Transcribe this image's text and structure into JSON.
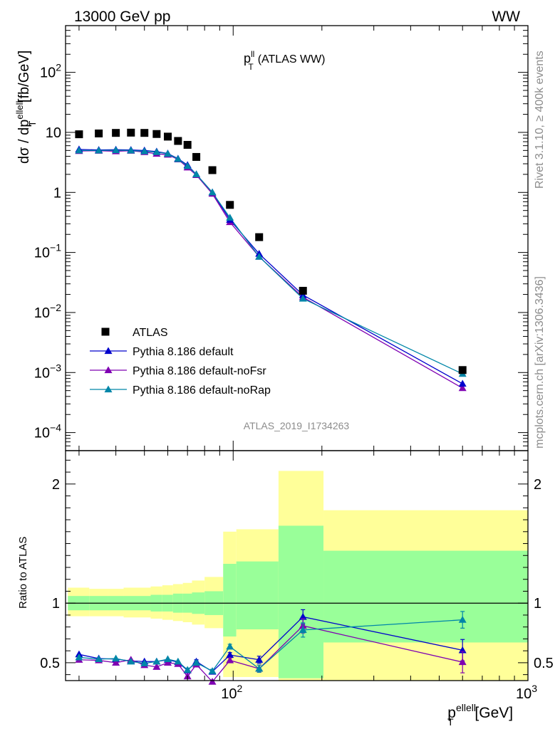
{
  "header": {
    "left": "13000 GeV pp",
    "right": "WW"
  },
  "side": {
    "rivet": "Rivet 3.1.10, ≥ 400k events",
    "mcplots": "mcplots.cern.ch [arXiv:1306.3436]"
  },
  "colors": {
    "atlas": "#000000",
    "default": "#0000cc",
    "noFsr": "#7f00b2",
    "noRap": "#0086a8",
    "band_outer": "#ffff99",
    "band_inner": "#99ff99"
  },
  "chart_data": [
    {
      "type": "scatter",
      "title_main": "p",
      "title_sup": "ll",
      "title_sub": "T",
      "title_rest": "(ATLAS WW)",
      "ylabel_pre": "dσ / dp",
      "ylabel_sup": "ellell",
      "ylabel_sub": "T",
      "ylabel_post": " [fb/GeV]",
      "yscale": "log",
      "ylim": [
        5e-05,
        600
      ],
      "xscale": "log",
      "xlim": [
        27,
        1000
      ],
      "y_ticks": [
        {
          "v": 0.0001,
          "base": "10",
          "exp": "−4"
        },
        {
          "v": 0.001,
          "base": "10",
          "exp": "−3"
        },
        {
          "v": 0.01,
          "base": "10",
          "exp": "−2"
        },
        {
          "v": 0.1,
          "base": "10",
          "exp": "−1"
        },
        {
          "v": 1,
          "base": "1",
          "exp": ""
        },
        {
          "v": 10,
          "base": "10",
          "exp": ""
        },
        {
          "v": 100,
          "base": "10",
          "exp": "2"
        }
      ],
      "watermark": "ATLAS_2019_I1734263",
      "legend": {
        "position": "bottom-left",
        "entries": [
          "ATLAS",
          "Pythia 8.186 default",
          "Pythia 8.186 default-noFsr",
          "Pythia 8.186 default-noRap"
        ]
      },
      "x": [
        30,
        35,
        40,
        45,
        50,
        55,
        60,
        65,
        70,
        75,
        85,
        97.5,
        122.5,
        172.5,
        600
      ],
      "series": [
        {
          "name": "ATLAS",
          "values": [
            9.3,
            9.6,
            9.8,
            9.9,
            9.8,
            9.4,
            8.5,
            7.2,
            6.2,
            3.9,
            2.35,
            0.62,
            0.18,
            0.023,
            0.0011
          ]
        },
        {
          "name": "Pythia 8.186 default",
          "values": [
            5.2,
            5.1,
            5.15,
            5.1,
            5.0,
            4.8,
            4.45,
            3.65,
            2.85,
            2.0,
            1.0,
            0.35,
            0.095,
            0.0195,
            0.00065
          ]
        },
        {
          "name": "Pythia 8.186 default-noFsr",
          "values": [
            4.9,
            4.95,
            4.85,
            4.95,
            4.7,
            4.4,
            4.25,
            3.55,
            2.6,
            1.95,
            0.95,
            0.32,
            0.085,
            0.018,
            0.00055
          ]
        },
        {
          "name": "Pythia 8.186 default-noRap",
          "values": [
            5.0,
            5.0,
            5.05,
            5.0,
            4.85,
            4.7,
            4.4,
            3.6,
            2.75,
            2.0,
            1.0,
            0.38,
            0.085,
            0.017,
            0.00095
          ]
        }
      ]
    },
    {
      "type": "scatter",
      "ylabel": "Ratio to ATLAS",
      "ylim": [
        0.35,
        2.28
      ],
      "xscale": "log",
      "xlim": [
        27,
        1000
      ],
      "xlabel_pre": "p",
      "xlabel_sup": "ellell",
      "xlabel_sub": "T",
      "xlabel_post": " [GeV]",
      "x_ticks": [
        {
          "v": 100,
          "base": "10",
          "exp": "2"
        },
        {
          "v": 1000,
          "base": "10",
          "exp": "3"
        }
      ],
      "y_ticks": [
        "0.5",
        "1",
        "2"
      ],
      "bins": [
        {
          "lo": 27.5,
          "hi": 32.5,
          "inner": [
            0.94,
            1.06
          ],
          "outer": [
            0.89,
            1.13
          ]
        },
        {
          "lo": 32.5,
          "hi": 37.5,
          "inner": [
            0.94,
            1.06
          ],
          "outer": [
            0.89,
            1.12
          ]
        },
        {
          "lo": 37.5,
          "hi": 42.5,
          "inner": [
            0.94,
            1.06
          ],
          "outer": [
            0.89,
            1.12
          ]
        },
        {
          "lo": 42.5,
          "hi": 47.5,
          "inner": [
            0.94,
            1.06
          ],
          "outer": [
            0.88,
            1.13
          ]
        },
        {
          "lo": 47.5,
          "hi": 52.5,
          "inner": [
            0.94,
            1.06
          ],
          "outer": [
            0.88,
            1.13
          ]
        },
        {
          "lo": 52.5,
          "hi": 57.5,
          "inner": [
            0.93,
            1.07
          ],
          "outer": [
            0.87,
            1.14
          ]
        },
        {
          "lo": 57.5,
          "hi": 62.5,
          "inner": [
            0.93,
            1.07
          ],
          "outer": [
            0.86,
            1.15
          ]
        },
        {
          "lo": 62.5,
          "hi": 67.5,
          "inner": [
            0.92,
            1.08
          ],
          "outer": [
            0.85,
            1.16
          ]
        },
        {
          "lo": 67.5,
          "hi": 72.5,
          "inner": [
            0.92,
            1.08
          ],
          "outer": [
            0.84,
            1.17
          ]
        },
        {
          "lo": 72.5,
          "hi": 80,
          "inner": [
            0.91,
            1.09
          ],
          "outer": [
            0.82,
            1.19
          ]
        },
        {
          "lo": 80,
          "hi": 92.5,
          "inner": [
            0.9,
            1.1
          ],
          "outer": [
            0.79,
            1.22
          ]
        },
        {
          "lo": 92.5,
          "hi": 102.5,
          "inner": [
            0.72,
            1.33
          ],
          "outer": [
            0.38,
            1.6
          ]
        },
        {
          "lo": 102.5,
          "hi": 142.5,
          "inner": [
            0.78,
            1.35
          ],
          "outer": [
            0.38,
            1.62
          ]
        },
        {
          "lo": 142.5,
          "hi": 202.5,
          "inner": [
            0.37,
            1.65
          ],
          "outer": [
            0.35,
            2.11
          ]
        },
        {
          "lo": 202.5,
          "hi": 1000,
          "inner": [
            0.67,
            1.44
          ],
          "outer": [
            0.35,
            1.78
          ]
        }
      ],
      "x": [
        30,
        35,
        40,
        45,
        50,
        55,
        60,
        65,
        70,
        75,
        85,
        97.5,
        122.5,
        172.5,
        600
      ],
      "series": [
        {
          "name": "Pythia 8.186 default",
          "values": [
            0.57,
            0.535,
            0.53,
            0.515,
            0.51,
            0.51,
            0.525,
            0.505,
            0.435,
            0.51,
            0.425,
            0.565,
            0.525,
            0.885,
            0.605
          ],
          "err": [
            0.01,
            0.01,
            0.01,
            0.01,
            0.01,
            0.01,
            0.01,
            0.01,
            0.015,
            0.015,
            0.015,
            0.02,
            0.03,
            0.06,
            0.09
          ]
        },
        {
          "name": "Pythia 8.186 default-noFsr",
          "values": [
            0.525,
            0.52,
            0.5,
            0.525,
            0.48,
            0.465,
            0.5,
            0.49,
            0.385,
            0.485,
            0.34,
            0.52,
            0.45,
            0.81,
            0.505
          ],
          "err": [
            0.01,
            0.01,
            0.01,
            0.01,
            0.01,
            0.01,
            0.01,
            0.01,
            0.015,
            0.015,
            0.015,
            0.02,
            0.03,
            0.06,
            0.09
          ]
        },
        {
          "name": "Pythia 8.186 default-noRap",
          "values": [
            0.545,
            0.53,
            0.535,
            0.51,
            0.495,
            0.51,
            0.53,
            0.51,
            0.44,
            0.5,
            0.43,
            0.635,
            0.45,
            0.775,
            0.86
          ],
          "err": [
            0.01,
            0.01,
            0.01,
            0.01,
            0.01,
            0.01,
            0.01,
            0.01,
            0.015,
            0.015,
            0.015,
            0.02,
            0.03,
            0.06,
            0.07
          ]
        }
      ]
    }
  ]
}
